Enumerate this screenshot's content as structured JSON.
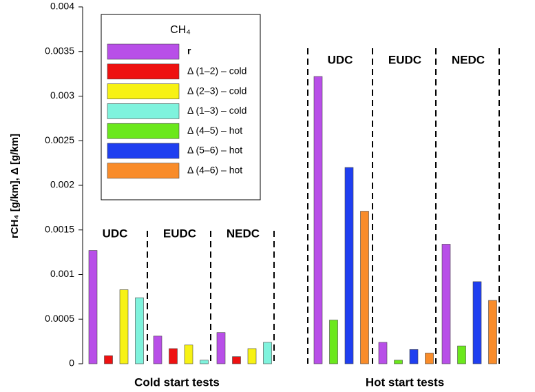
{
  "chart_data": {
    "type": "bar",
    "y_label": "rCH₄ [g/km], Δ [g/km]",
    "legend_title": "CH₄",
    "legend": "top-left",
    "groups": [
      "Cold start tests",
      "Hot start tests"
    ],
    "categories": [
      "UDC",
      "EUDC",
      "NEDC",
      "UDC",
      "EUDC",
      "NEDC"
    ],
    "ylim": [
      0,
      0.004
    ],
    "yticks": [
      0,
      0.0005,
      0.001,
      0.0015,
      0.002,
      0.0025,
      0.003,
      0.0035,
      0.004
    ],
    "series": [
      {
        "name": "r",
        "color": "#b84fe8",
        "values": [
          0.00127,
          0.00031,
          0.00035,
          0.00322,
          0.00024,
          0.00134
        ]
      },
      {
        "name": "Δ (1–2) – cold",
        "color": "#ee1111",
        "values": [
          9e-05,
          0.00017,
          8e-05,
          null,
          null,
          null
        ]
      },
      {
        "name": "Δ (2–3) – cold",
        "color": "#f7f214",
        "values": [
          0.00083,
          0.00021,
          0.00017,
          null,
          null,
          null
        ]
      },
      {
        "name": "Δ (1–3) – cold",
        "color": "#7ff3dd",
        "values": [
          0.00074,
          4e-05,
          0.00024,
          null,
          null,
          null
        ]
      },
      {
        "name": "Δ (4–5) – hot",
        "color": "#6be81c",
        "values": [
          null,
          null,
          null,
          0.00049,
          4e-05,
          0.0002
        ]
      },
      {
        "name": "Δ (5–6) – hot",
        "color": "#1f3ff0",
        "values": [
          null,
          null,
          null,
          0.0022,
          0.00016,
          0.00092
        ]
      },
      {
        "name": "Δ (4–6) – hot",
        "color": "#f98c2a",
        "values": [
          null,
          null,
          null,
          0.00171,
          0.00012,
          0.00071
        ]
      }
    ]
  }
}
